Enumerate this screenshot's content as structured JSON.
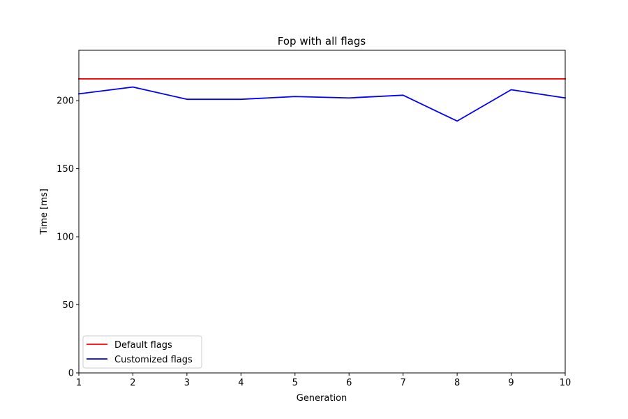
{
  "chart_data": {
    "type": "line",
    "title": "Fop with all flags",
    "xlabel": "Generation",
    "ylabel": "Time [ms]",
    "x": [
      1,
      2,
      3,
      4,
      5,
      6,
      7,
      8,
      9,
      10
    ],
    "xlim": [
      1,
      10
    ],
    "ylim": [
      0,
      237
    ],
    "xticks": [
      1,
      2,
      3,
      4,
      5,
      6,
      7,
      8,
      9,
      10
    ],
    "yticks": [
      0,
      50,
      100,
      150,
      200
    ],
    "grid": false,
    "legend_position": "lower-left",
    "series": [
      {
        "name": "Default flags",
        "color": "#ff0000",
        "values": [
          216,
          216,
          216,
          216,
          216,
          216,
          216,
          216,
          216,
          216
        ]
      },
      {
        "name": "Customized flags",
        "color": "#0000ff",
        "values": [
          205,
          210,
          201,
          201,
          203,
          202,
          204,
          185,
          208,
          202
        ]
      }
    ]
  }
}
